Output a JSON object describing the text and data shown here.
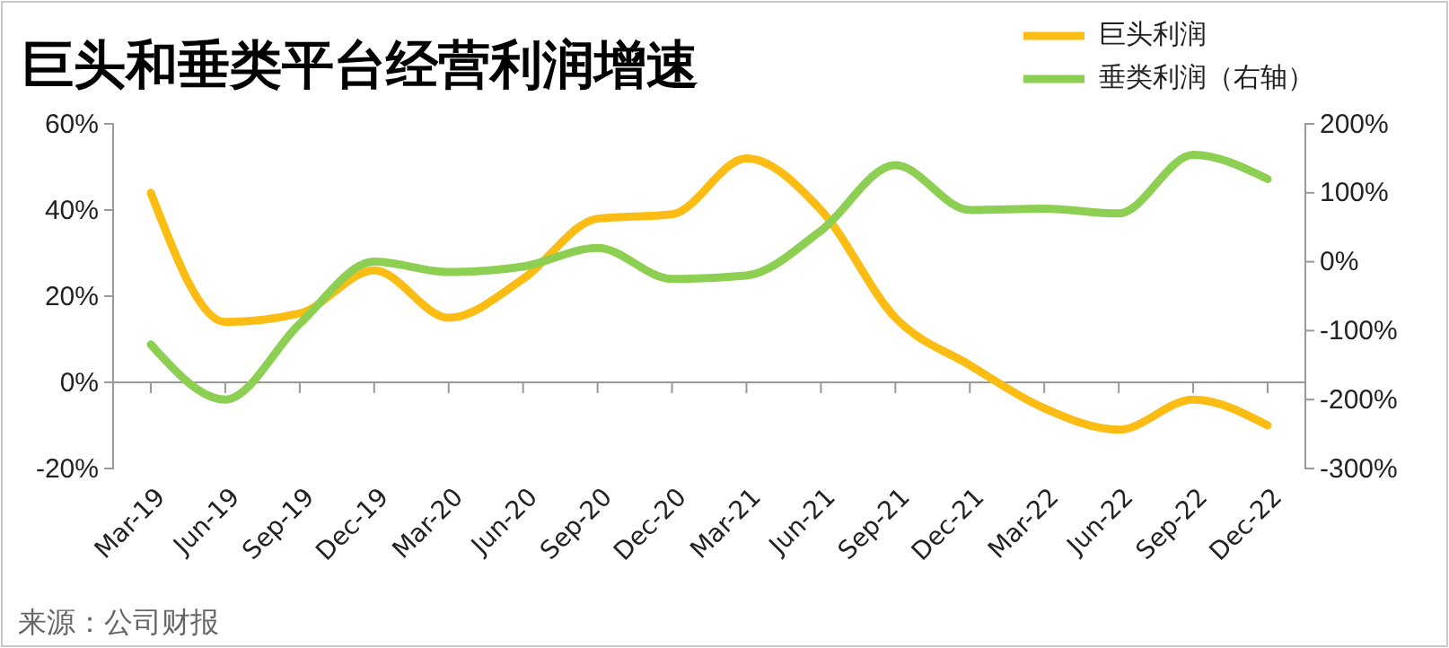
{
  "chart_data": {
    "type": "line",
    "title": "巨头和垂类平台经营利润增速",
    "categories": [
      "Mar-19",
      "Jun-19",
      "Sep-19",
      "Dec-19",
      "Mar-20",
      "Jun-20",
      "Sep-20",
      "Dec-20",
      "Mar-21",
      "Jun-21",
      "Sep-21",
      "Dec-21",
      "Mar-22",
      "Jun-22",
      "Sep-22",
      "Dec-22"
    ],
    "series": [
      {
        "name": "巨头利润",
        "color": "#fbbd14",
        "values": [
          44,
          14,
          16,
          26,
          15,
          24,
          38,
          39,
          52,
          40,
          15,
          4,
          -6,
          -11,
          -4,
          -10
        ]
      },
      {
        "name": "垂类利润（右轴）",
        "color": "#8ccf52",
        "axis": "y2",
        "values": [
          -120,
          -200,
          -90,
          0,
          -15,
          -7,
          20,
          -25,
          -20,
          45,
          140,
          75,
          77,
          70,
          155,
          120
        ]
      }
    ],
    "ylim": [
      -20,
      60
    ],
    "yticks": [
      {
        "value": -20,
        "label": "-20%"
      },
      {
        "value": 0,
        "label": "0%"
      },
      {
        "value": 20,
        "label": "20%"
      },
      {
        "value": 40,
        "label": "40%"
      },
      {
        "value": 60,
        "label": "60%"
      }
    ],
    "y2lim": [
      -300,
      200
    ],
    "y2ticks": [
      {
        "value": -300,
        "label": "-300%"
      },
      {
        "value": -200,
        "label": "-200%"
      },
      {
        "value": -100,
        "label": "-100%"
      },
      {
        "value": 0,
        "label": "0%"
      },
      {
        "value": 100,
        "label": "100%"
      },
      {
        "value": 200,
        "label": "200%"
      }
    ],
    "legend": "top right",
    "marker": "none",
    "line_style": "solid",
    "annotations": [
      "来源：公司财报"
    ]
  }
}
